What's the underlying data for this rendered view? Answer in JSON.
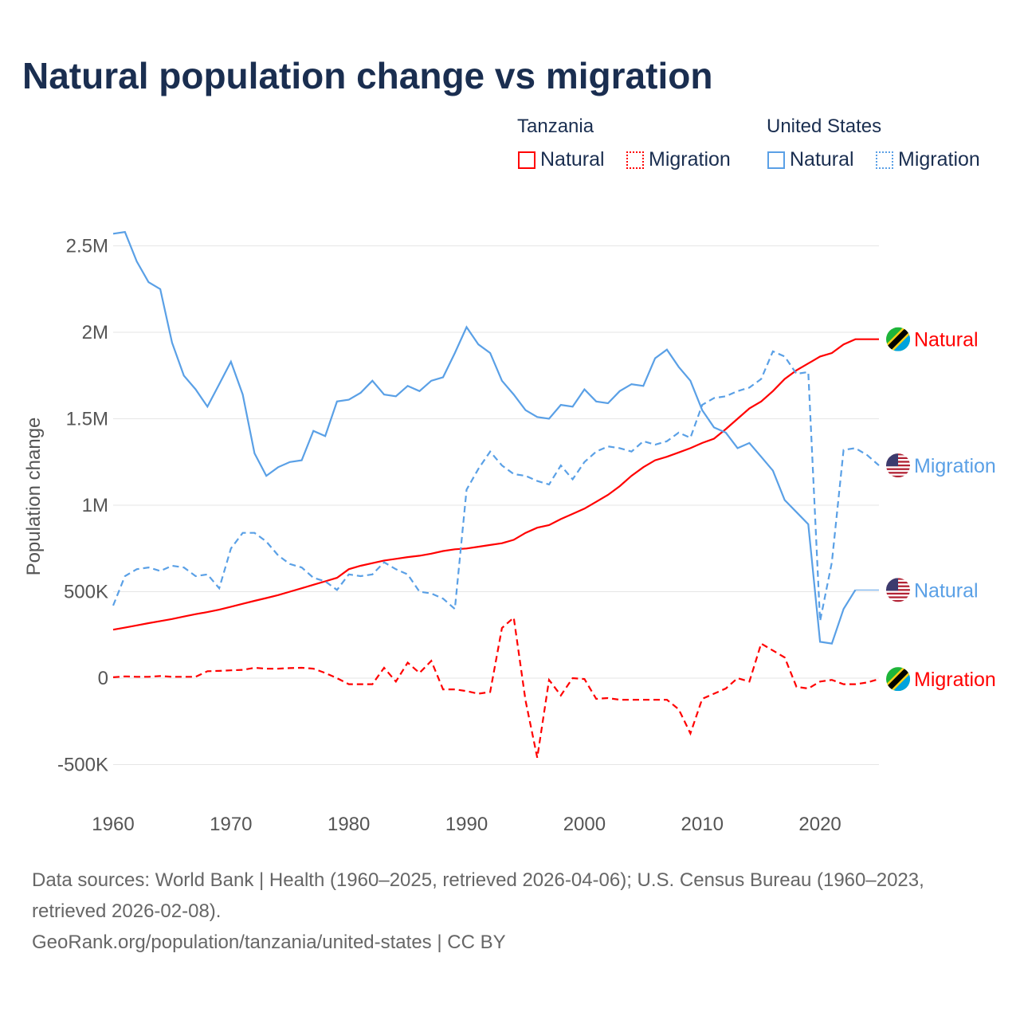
{
  "chart_data": {
    "type": "line",
    "title": "Natural population change vs migration",
    "ylabel": "Population change",
    "xlabel": "",
    "xlim": [
      1960,
      2025
    ],
    "ylim": [
      -500000,
      2600000
    ],
    "grid": true,
    "yticks": [
      {
        "v": 2500000,
        "label": "2.5M"
      },
      {
        "v": 2000000,
        "label": "2M"
      },
      {
        "v": 1500000,
        "label": "1.5M"
      },
      {
        "v": 1000000,
        "label": "1M"
      },
      {
        "v": 500000,
        "label": "500K"
      },
      {
        "v": 0,
        "label": "0"
      },
      {
        "v": -500000,
        "label": "-500K"
      }
    ],
    "xticks": [
      "1960",
      "1970",
      "1980",
      "1990",
      "2000",
      "2010",
      "2020"
    ],
    "legend": {
      "groups": [
        {
          "name": "Tanzania",
          "items": [
            "Natural",
            "Migration"
          ]
        },
        {
          "name": "United States",
          "items": [
            "Natural",
            "Migration"
          ]
        }
      ],
      "placement": "top-right"
    },
    "colors": {
      "tanzania": "#ff0000",
      "united_states": "#5aa0e6"
    },
    "x_start": 1960,
    "series": [
      {
        "name": "Tanzania Natural",
        "country": "Tanzania",
        "label": "Natural",
        "dash": false,
        "color": "#ff0000",
        "flag": "tanzania-flag",
        "values": [
          280000,
          292000,
          305000,
          318000,
          330000,
          342000,
          356000,
          370000,
          382000,
          396000,
          413000,
          430000,
          447000,
          463000,
          480000,
          500000,
          520000,
          540000,
          560000,
          580000,
          630000,
          650000,
          665000,
          680000,
          690000,
          700000,
          708000,
          720000,
          735000,
          745000,
          750000,
          760000,
          770000,
          780000,
          800000,
          840000,
          870000,
          885000,
          920000,
          950000,
          980000,
          1020000,
          1060000,
          1110000,
          1170000,
          1220000,
          1260000,
          1280000,
          1305000,
          1330000,
          1360000,
          1385000,
          1440000,
          1500000,
          1560000,
          1600000,
          1660000,
          1730000,
          1780000,
          1820000,
          1860000,
          1880000,
          1930000,
          1960000,
          1960000,
          1960000
        ]
      },
      {
        "name": "Tanzania Migration",
        "country": "Tanzania",
        "label": "Migration",
        "dash": true,
        "color": "#ff0000",
        "flag": "tanzania-flag",
        "values": [
          5000,
          10000,
          8000,
          8000,
          12000,
          8000,
          8000,
          8000,
          40000,
          42000,
          45000,
          48000,
          60000,
          55000,
          55000,
          58000,
          60000,
          55000,
          30000,
          0,
          -35000,
          -35000,
          -35000,
          60000,
          -20000,
          90000,
          30000,
          100000,
          -65000,
          -65000,
          -75000,
          -90000,
          -80000,
          290000,
          350000,
          -130000,
          -460000,
          -10000,
          -100000,
          0,
          -5000,
          -120000,
          -115000,
          -125000,
          -125000,
          -125000,
          -125000,
          -125000,
          -180000,
          -320000,
          -120000,
          -90000,
          -60000,
          0,
          -20000,
          200000,
          160000,
          120000,
          -50000,
          -60000,
          -20000,
          -10000,
          -35000,
          -35000,
          -25000,
          -5000
        ]
      },
      {
        "name": "United States Natural",
        "country": "United States",
        "label": "Natural",
        "dash": false,
        "color": "#5aa0e6",
        "flag": "us-flag",
        "values": [
          2570000,
          2580000,
          2410000,
          2290000,
          2250000,
          1940000,
          1750000,
          1670000,
          1570000,
          1700000,
          1830000,
          1640000,
          1300000,
          1170000,
          1220000,
          1250000,
          1260000,
          1430000,
          1400000,
          1600000,
          1610000,
          1650000,
          1720000,
          1640000,
          1630000,
          1690000,
          1660000,
          1720000,
          1740000,
          1880000,
          2030000,
          1930000,
          1880000,
          1720000,
          1640000,
          1550000,
          1510000,
          1500000,
          1580000,
          1570000,
          1670000,
          1600000,
          1590000,
          1660000,
          1700000,
          1690000,
          1850000,
          1900000,
          1800000,
          1720000,
          1550000,
          1450000,
          1420000,
          1330000,
          1360000,
          1280000,
          1200000,
          1030000,
          960000,
          890000,
          210000,
          200000,
          400000,
          510000,
          null,
          null
        ]
      },
      {
        "name": "United States Migration",
        "country": "United States",
        "label": "Migration",
        "dash": true,
        "color": "#5aa0e6",
        "flag": "us-flag",
        "values": [
          420000,
          590000,
          630000,
          640000,
          620000,
          650000,
          640000,
          590000,
          600000,
          520000,
          750000,
          840000,
          840000,
          790000,
          710000,
          660000,
          640000,
          580000,
          560000,
          510000,
          600000,
          590000,
          600000,
          670000,
          630000,
          600000,
          500000,
          490000,
          460000,
          400000,
          1090000,
          1210000,
          1310000,
          1230000,
          1180000,
          1170000,
          1140000,
          1120000,
          1230000,
          1150000,
          1250000,
          1310000,
          1340000,
          1330000,
          1310000,
          1370000,
          1350000,
          1370000,
          1420000,
          1390000,
          1580000,
          1620000,
          1630000,
          1660000,
          1680000,
          1730000,
          1890000,
          1860000,
          1760000,
          1770000,
          330000,
          670000,
          1320000,
          1330000,
          1290000,
          1230000
        ]
      }
    ]
  },
  "legend_titles": {
    "tanzania": "Tanzania",
    "united_states": "United States"
  },
  "legend_items": {
    "natural": "Natural",
    "migration": "Migration"
  },
  "footer": {
    "line1": "Data sources: World Bank | Health (1960–2025, retrieved 2026-04-06); U.S. Census Bureau (1960–2023,",
    "line2": "retrieved 2026-02-08).",
    "line3": "GeoRank.org/population/tanzania/united-states | CC BY"
  }
}
